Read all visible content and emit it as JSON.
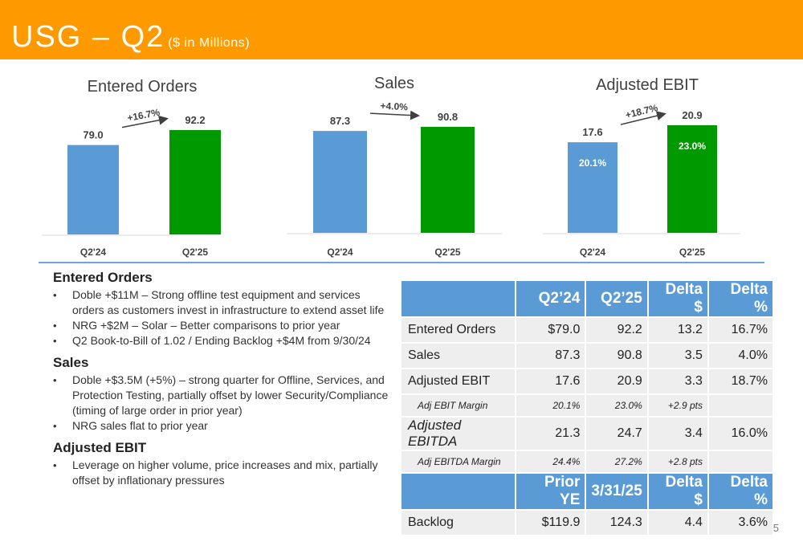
{
  "header": {
    "title": "USG – Q2",
    "subtitle": "($ in Millions)"
  },
  "colors": {
    "banner": "#ff9900",
    "blue": "#5b9bd5",
    "green": "#009900",
    "table_row": "#eeeeee"
  },
  "chart_data": [
    {
      "type": "bar",
      "title": "Entered Orders",
      "categories": [
        "Q2'24",
        "Q2'25"
      ],
      "values": [
        79.0,
        92.2
      ],
      "value_labels": [
        "79.0",
        "92.2"
      ],
      "growth": "+16.7%",
      "bar_colors": [
        "#5b9bd5",
        "#009900"
      ]
    },
    {
      "type": "bar",
      "title": "Sales",
      "categories": [
        "Q2'24",
        "Q2'25"
      ],
      "values": [
        87.3,
        90.8
      ],
      "value_labels": [
        "87.3",
        "90.8"
      ],
      "growth": "+4.0%",
      "bar_colors": [
        "#5b9bd5",
        "#009900"
      ]
    },
    {
      "type": "bar",
      "title": "Adjusted EBIT",
      "categories": [
        "Q2'24",
        "Q2'25"
      ],
      "values": [
        17.6,
        20.9
      ],
      "value_labels": [
        "17.6",
        "20.9"
      ],
      "growth": "+18.7%",
      "inner_labels": [
        "20.1%",
        "23.0%"
      ],
      "bar_colors": [
        "#5b9bd5",
        "#009900"
      ]
    }
  ],
  "notes": {
    "entered_orders": {
      "heading": "Entered Orders",
      "bullets": [
        "Doble +$11M –  Strong offline test equipment and services orders as customers invest in infrastructure to extend asset life",
        "NRG +$2M – Solar – Better comparisons to prior year",
        "Q2 Book-to-Bill of 1.02 / Ending Backlog +$4M from 9/30/24"
      ]
    },
    "sales": {
      "heading": "Sales",
      "bullets": [
        "Doble +$3.5M  (+5%) – strong quarter for Offline, Services, and Protection Testing, partially offset by lower Security/Compliance (timing of large order in prior year)",
        "NRG sales flat to prior year"
      ]
    },
    "adjusted_ebit": {
      "heading": "Adjusted EBIT",
      "bullets": [
        "Leverage on higher volume, price increases and mix, partially offset by inflationary pressures"
      ]
    }
  },
  "table": {
    "header1": [
      "",
      "Q2’24",
      "Q2’25",
      "Delta $",
      "Delta %"
    ],
    "rows1": [
      {
        "label": "Entered Orders",
        "v": [
          "$79.0",
          "92.2",
          "13.2",
          "16.7%"
        ],
        "style": "normal"
      },
      {
        "label": "Sales",
        "v": [
          "87.3",
          "90.8",
          "3.5",
          "4.0%"
        ],
        "style": "normal"
      },
      {
        "label": "Adjusted EBIT",
        "v": [
          "17.6",
          "20.9",
          "3.3",
          "18.7%"
        ],
        "style": "normal"
      },
      {
        "label": "Adj EBIT Margin",
        "v": [
          "20.1%",
          "23.0%",
          "+2.9 pts",
          ""
        ],
        "style": "small"
      },
      {
        "label": "Adjusted EBITDA",
        "v": [
          "21.3",
          "24.7",
          "3.4",
          "16.0%"
        ],
        "style": "italic"
      },
      {
        "label": "Adj EBITDA Margin",
        "v": [
          "24.4%",
          "27.2%",
          "+2.8 pts",
          ""
        ],
        "style": "small"
      }
    ],
    "header2": [
      "",
      "Prior YE",
      "3/31/25",
      "Delta $",
      "Delta %"
    ],
    "rows2": [
      {
        "label": "Backlog",
        "v": [
          "$119.9",
          "124.3",
          "4.4",
          "3.6%"
        ],
        "style": "normal"
      }
    ]
  },
  "page_number": "5"
}
